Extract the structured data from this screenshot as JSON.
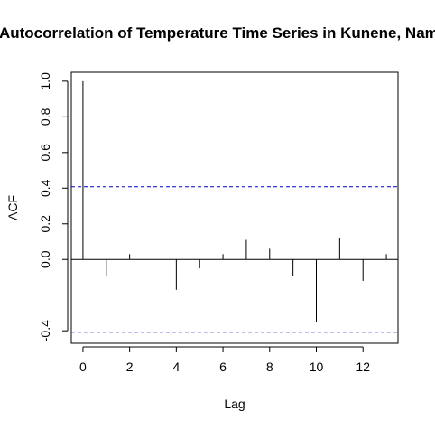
{
  "chart_data": {
    "type": "bar",
    "subtype": "acf-stem",
    "title": "Autocorrelation of Temperature Time Series in Kunene, Namibia",
    "xlabel": "Lag",
    "ylabel": "ACF",
    "xlim": [
      -0.5,
      13.5
    ],
    "ylim": [
      -0.47,
      1.05
    ],
    "x_ticks": [
      0,
      2,
      4,
      6,
      8,
      10,
      12
    ],
    "x_tick_labels": [
      "0",
      "2",
      "4",
      "6",
      "8",
      "10",
      "12"
    ],
    "y_ticks": [
      -0.4,
      0.0,
      0.2,
      0.4,
      0.6,
      0.8,
      1.0
    ],
    "y_tick_labels": [
      "-0.4",
      "0.0",
      "0.2",
      "0.4",
      "0.6",
      "0.8",
      "1.0"
    ],
    "lags": [
      0,
      1,
      2,
      3,
      4,
      5,
      6,
      7,
      8,
      9,
      10,
      11,
      12,
      13
    ],
    "values": [
      1.0,
      -0.09,
      0.03,
      -0.09,
      -0.17,
      -0.05,
      0.03,
      0.11,
      0.06,
      -0.09,
      -0.35,
      0.12,
      -0.12,
      0.03
    ],
    "confidence_bounds": [
      0.408,
      -0.408
    ],
    "grid": false,
    "colors": {
      "stem": "#000000",
      "confidence_line": "#0000cc",
      "axis": "#000000"
    }
  }
}
